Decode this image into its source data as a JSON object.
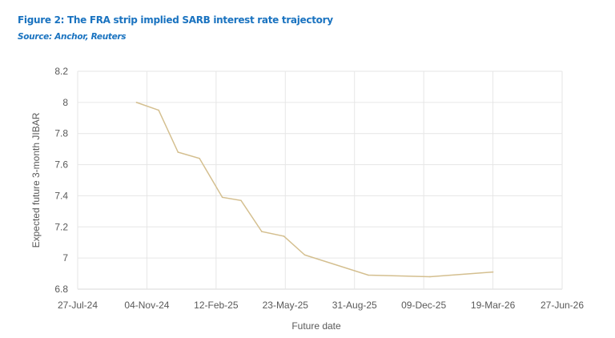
{
  "title": "Figure 2: The FRA strip implied SARB interest rate trajectory",
  "source": "Source: Anchor, Reuters",
  "chart_data": {
    "type": "line",
    "xlabel": "Future date",
    "ylabel": "Expected future 3-month JIBAR",
    "ylim": [
      6.8,
      8.2
    ],
    "xlim": [
      "2024-07-27",
      "2026-06-27"
    ],
    "grid": true,
    "line_color": "#d4bf8f",
    "y_ticks": [
      "8.2",
      "8",
      "7.8",
      "7.6",
      "7.4",
      "7.2",
      "7",
      "6.8"
    ],
    "x_ticks": [
      "27-Jul-24",
      "04-Nov-24",
      "12-Feb-25",
      "23-May-25",
      "31-Aug-25",
      "09-Dec-25",
      "19-Mar-26",
      "27-Jun-26"
    ],
    "series": [
      {
        "x": [
          "2024-10-20",
          "2024-11-21",
          "2024-12-19",
          "2025-01-19",
          "2025-02-21",
          "2025-03-20",
          "2025-04-19",
          "2025-05-21",
          "2025-06-20",
          "2025-09-20",
          "2025-12-18",
          "2026-03-19"
        ],
        "y": [
          8.0,
          7.95,
          7.68,
          7.64,
          7.39,
          7.37,
          7.17,
          7.14,
          7.02,
          6.89,
          6.88,
          6.91
        ]
      }
    ]
  }
}
